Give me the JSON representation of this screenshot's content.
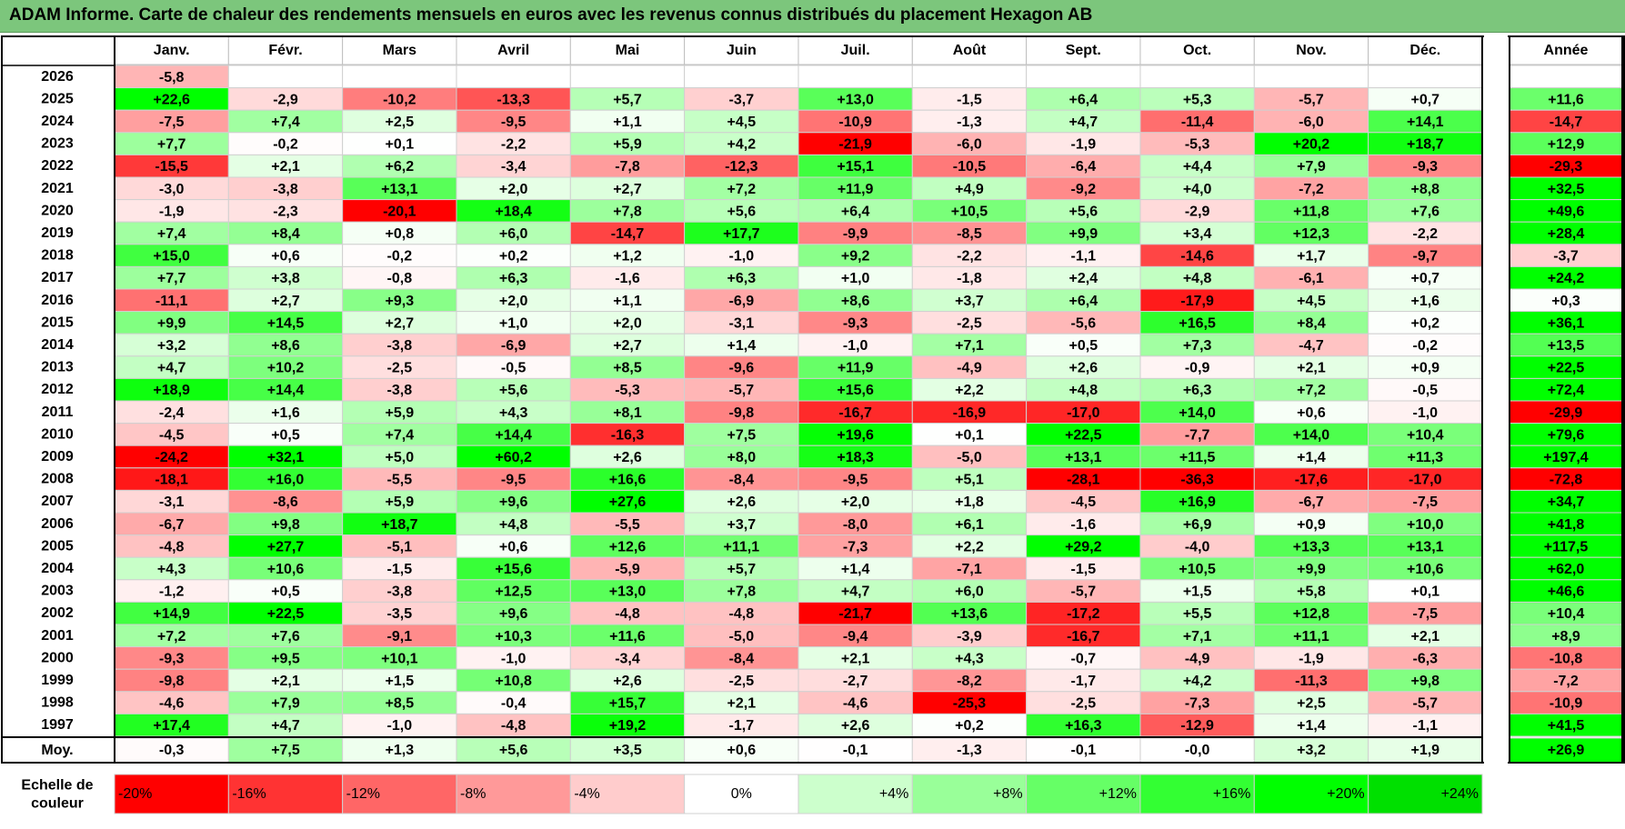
{
  "title": "ADAM Informe. Carte de chaleur des rendements mensuels en euros avec les revenus connus distribués du placement Hexagon AB",
  "chart_data": {
    "type": "heatmap",
    "months": [
      "Janv.",
      "Févr.",
      "Mars",
      "Avril",
      "Mai",
      "Juin",
      "Juil.",
      "Août",
      "Sept.",
      "Oct.",
      "Nov.",
      "Déc."
    ],
    "year_column_label": "Année",
    "rows": [
      {
        "year": "2026",
        "months": [
          "-5,8",
          null,
          null,
          null,
          null,
          null,
          null,
          null,
          null,
          null,
          null,
          null
        ],
        "annual": null
      },
      {
        "year": "2025",
        "months": [
          "+22,6",
          "-2,9",
          "-10,2",
          "-13,3",
          "+5,7",
          "-3,7",
          "+13,0",
          "-1,5",
          "+6,4",
          "+5,3",
          "-5,7",
          "+0,7"
        ],
        "annual": "+11,6"
      },
      {
        "year": "2024",
        "months": [
          "-7,5",
          "+7,4",
          "+2,5",
          "-9,5",
          "+1,1",
          "+4,5",
          "-10,9",
          "-1,3",
          "+4,7",
          "-11,4",
          "-6,0",
          "+14,1"
        ],
        "annual": "-14,7"
      },
      {
        "year": "2023",
        "months": [
          "+7,7",
          "-0,2",
          "+0,1",
          "-2,2",
          "+5,9",
          "+4,2",
          "-21,9",
          "-6,0",
          "-1,9",
          "-5,3",
          "+20,2",
          "+18,7"
        ],
        "annual": "+12,9"
      },
      {
        "year": "2022",
        "months": [
          "-15,5",
          "+2,1",
          "+6,2",
          "-3,4",
          "-7,8",
          "-12,3",
          "+15,1",
          "-10,5",
          "-6,4",
          "+4,4",
          "+7,9",
          "-9,3"
        ],
        "annual": "-29,3"
      },
      {
        "year": "2021",
        "months": [
          "-3,0",
          "-3,8",
          "+13,1",
          "+2,0",
          "+2,7",
          "+7,2",
          "+11,9",
          "+4,9",
          "-9,2",
          "+4,0",
          "-7,2",
          "+8,8"
        ],
        "annual": "+32,5"
      },
      {
        "year": "2020",
        "months": [
          "-1,9",
          "-2,3",
          "-20,1",
          "+18,4",
          "+7,8",
          "+5,6",
          "+6,4",
          "+10,5",
          "+5,6",
          "-2,9",
          "+11,8",
          "+7,6"
        ],
        "annual": "+49,6"
      },
      {
        "year": "2019",
        "months": [
          "+7,4",
          "+8,4",
          "+0,8",
          "+6,0",
          "-14,7",
          "+17,7",
          "-9,9",
          "-8,5",
          "+9,9",
          "+3,4",
          "+12,3",
          "-2,2"
        ],
        "annual": "+28,4"
      },
      {
        "year": "2018",
        "months": [
          "+15,0",
          "+0,6",
          "-0,2",
          "+0,2",
          "+1,2",
          "-1,0",
          "+9,2",
          "-2,2",
          "-1,1",
          "-14,6",
          "+1,7",
          "-9,7"
        ],
        "annual": "-3,7"
      },
      {
        "year": "2017",
        "months": [
          "+7,7",
          "+3,8",
          "-0,8",
          "+6,3",
          "-1,6",
          "+6,3",
          "+1,0",
          "-1,8",
          "+2,4",
          "+4,8",
          "-6,1",
          "+0,7"
        ],
        "annual": "+24,2"
      },
      {
        "year": "2016",
        "months": [
          "-11,1",
          "+2,7",
          "+9,3",
          "+2,0",
          "+1,1",
          "-6,9",
          "+8,6",
          "+3,7",
          "+6,4",
          "-17,9",
          "+4,5",
          "+1,6"
        ],
        "annual": "+0,3"
      },
      {
        "year": "2015",
        "months": [
          "+9,9",
          "+14,5",
          "+2,7",
          "+1,0",
          "+2,0",
          "-3,1",
          "-9,3",
          "-2,5",
          "-5,6",
          "+16,5",
          "+8,4",
          "+0,2"
        ],
        "annual": "+36,1"
      },
      {
        "year": "2014",
        "months": [
          "+3,2",
          "+8,6",
          "-3,8",
          "-6,9",
          "+2,7",
          "+1,4",
          "-1,0",
          "+7,1",
          "+0,5",
          "+7,3",
          "-4,7",
          "-0,2"
        ],
        "annual": "+13,5"
      },
      {
        "year": "2013",
        "months": [
          "+4,7",
          "+10,2",
          "-2,5",
          "-0,5",
          "+8,5",
          "-9,6",
          "+11,9",
          "-4,9",
          "+2,6",
          "-0,9",
          "+2,1",
          "+0,9"
        ],
        "annual": "+22,5"
      },
      {
        "year": "2012",
        "months": [
          "+18,9",
          "+14,4",
          "-3,8",
          "+5,6",
          "-5,3",
          "-5,7",
          "+15,6",
          "+2,2",
          "+4,8",
          "+6,3",
          "+7,2",
          "-0,5"
        ],
        "annual": "+72,4"
      },
      {
        "year": "2011",
        "months": [
          "-2,4",
          "+1,6",
          "+5,9",
          "+4,3",
          "+8,1",
          "-9,8",
          "-16,7",
          "-16,9",
          "-17,0",
          "+14,0",
          "+0,6",
          "-1,0"
        ],
        "annual": "-29,9"
      },
      {
        "year": "2010",
        "months": [
          "-4,5",
          "+0,5",
          "+7,4",
          "+14,4",
          "-16,3",
          "+7,5",
          "+19,6",
          "+0,1",
          "+22,5",
          "-7,7",
          "+14,0",
          "+10,4"
        ],
        "annual": "+79,6"
      },
      {
        "year": "2009",
        "months": [
          "-24,2",
          "+32,1",
          "+5,0",
          "+60,2",
          "+2,6",
          "+8,0",
          "+18,3",
          "-5,0",
          "+13,1",
          "+11,5",
          "+1,4",
          "+11,3"
        ],
        "annual": "+197,4"
      },
      {
        "year": "2008",
        "months": [
          "-18,1",
          "+16,0",
          "-5,5",
          "-9,5",
          "+16,6",
          "-8,4",
          "-9,5",
          "+5,1",
          "-28,1",
          "-36,3",
          "-17,6",
          "-17,0"
        ],
        "annual": "-72,8"
      },
      {
        "year": "2007",
        "months": [
          "-3,1",
          "-8,6",
          "+5,9",
          "+9,6",
          "+27,6",
          "+2,6",
          "+2,0",
          "+1,8",
          "-4,5",
          "+16,9",
          "-6,7",
          "-7,5"
        ],
        "annual": "+34,7"
      },
      {
        "year": "2006",
        "months": [
          "-6,7",
          "+9,8",
          "+18,7",
          "+4,8",
          "-5,5",
          "+3,7",
          "-8,0",
          "+6,1",
          "-1,6",
          "+6,9",
          "+0,9",
          "+10,0"
        ],
        "annual": "+41,8"
      },
      {
        "year": "2005",
        "months": [
          "-4,8",
          "+27,7",
          "-5,1",
          "+0,6",
          "+12,6",
          "+11,1",
          "-7,3",
          "+2,2",
          "+29,2",
          "-4,0",
          "+13,3",
          "+13,1"
        ],
        "annual": "+117,5"
      },
      {
        "year": "2004",
        "months": [
          "+4,3",
          "+10,6",
          "-1,5",
          "+15,6",
          "-5,9",
          "+5,7",
          "+1,4",
          "-7,1",
          "-1,5",
          "+10,5",
          "+9,9",
          "+10,6"
        ],
        "annual": "+62,0"
      },
      {
        "year": "2003",
        "months": [
          "-1,2",
          "+0,5",
          "-3,8",
          "+12,5",
          "+13,0",
          "+7,8",
          "+4,7",
          "+6,0",
          "-5,7",
          "+1,5",
          "+5,8",
          "+0,1"
        ],
        "annual": "+46,6"
      },
      {
        "year": "2002",
        "months": [
          "+14,9",
          "+22,5",
          "-3,5",
          "+9,6",
          "-4,8",
          "-4,8",
          "-21,7",
          "+13,6",
          "-17,2",
          "+5,5",
          "+12,8",
          "-7,5"
        ],
        "annual": "+10,4"
      },
      {
        "year": "2001",
        "months": [
          "+7,2",
          "+7,6",
          "-9,1",
          "+10,3",
          "+11,6",
          "-5,0",
          "-9,4",
          "-3,9",
          "-16,7",
          "+7,1",
          "+11,1",
          "+2,1"
        ],
        "annual": "+8,9"
      },
      {
        "year": "2000",
        "months": [
          "-9,3",
          "+9,5",
          "+10,1",
          "-1,0",
          "-3,4",
          "-8,4",
          "+2,1",
          "+4,3",
          "-0,7",
          "-4,9",
          "-1,9",
          "-6,3"
        ],
        "annual": "-10,8"
      },
      {
        "year": "1999",
        "months": [
          "-9,8",
          "+2,1",
          "+1,5",
          "+10,8",
          "+2,6",
          "-2,5",
          "-2,7",
          "-8,2",
          "-1,7",
          "+4,2",
          "-11,3",
          "+9,8"
        ],
        "annual": "-7,2"
      },
      {
        "year": "1998",
        "months": [
          "-4,6",
          "+7,9",
          "+8,5",
          "-0,4",
          "+15,7",
          "+2,1",
          "-4,6",
          "-25,3",
          "-2,5",
          "-7,3",
          "+2,5",
          "-5,7"
        ],
        "annual": "-10,9"
      },
      {
        "year": "1997",
        "months": [
          "+17,4",
          "+4,7",
          "-1,0",
          "-4,8",
          "+19,2",
          "-1,7",
          "+2,6",
          "+0,2",
          "+16,3",
          "-12,9",
          "+1,4",
          "-1,1"
        ],
        "annual": "+41,5"
      }
    ],
    "average_row": {
      "label": "Moy.",
      "months": [
        "-0,3",
        "+7,5",
        "+1,3",
        "+5,6",
        "+3,5",
        "+0,6",
        "-0,1",
        "-1,3",
        "-0,1",
        "-0,0",
        "+3,2",
        "+1,9"
      ],
      "annual": "+26,9"
    },
    "legend": {
      "label_line1": "Echelle de",
      "label_line2": "couleur",
      "stops": [
        {
          "label": "-20%",
          "color": "#ff0000"
        },
        {
          "label": "-16%",
          "color": "#ff3333"
        },
        {
          "label": "-12%",
          "color": "#ff6666"
        },
        {
          "label": "-8%",
          "color": "#ff9999"
        },
        {
          "label": "-4%",
          "color": "#ffcccc"
        },
        {
          "label": "0%",
          "color": "#ffffff"
        },
        {
          "label": "+4%",
          "color": "#ccffcc"
        },
        {
          "label": "+8%",
          "color": "#99ff99"
        },
        {
          "label": "+12%",
          "color": "#66ff66"
        },
        {
          "label": "+16%",
          "color": "#33ff33"
        },
        {
          "label": "+20%",
          "color": "#00ff00"
        },
        {
          "label": "+24%",
          "color": "#00e000"
        }
      ]
    },
    "colors": {
      "title_background": "#7cc67c",
      "negative_max": "#ff0000",
      "positive_max": "#00ff00",
      "neutral": "#ffffff"
    }
  }
}
